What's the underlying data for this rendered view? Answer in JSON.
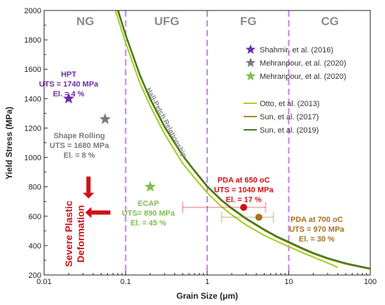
{
  "chart_data": {
    "type": "line",
    "xlabel": "Grain Size (μm)",
    "ylabel": "Yield Stress (MPa)",
    "xscale": "log",
    "xlim": [
      0.01,
      100
    ],
    "ylim": [
      200,
      2000
    ],
    "x_ticks": [
      0.01,
      0.1,
      1,
      10,
      100
    ],
    "x_tick_labels": [
      "0.01",
      "0.1",
      "1",
      "10",
      "100"
    ],
    "y_ticks": [
      200,
      400,
      600,
      800,
      1000,
      1200,
      1400,
      1600,
      1800,
      2000
    ],
    "region_boundaries": [
      0.1,
      1,
      10
    ],
    "regions": [
      {
        "label": "NG",
        "x": 0.032
      },
      {
        "label": "UFG",
        "x": 0.32
      },
      {
        "label": "FG",
        "x": 3.2
      },
      {
        "label": "CG",
        "x": 32
      }
    ],
    "series": [
      {
        "name": "Otto, et al. (2013)",
        "color": "#a3d12d",
        "x": [
          0.075,
          0.1,
          0.15,
          0.2,
          0.3,
          0.5,
          0.7,
          1,
          1.5,
          2,
          3,
          5,
          7,
          10,
          15,
          20,
          30,
          40
        ],
        "y": [
          2000,
          1780,
          1505,
          1350,
          1160,
          960,
          860,
          760,
          665,
          610,
          540,
          470,
          432,
          393,
          350,
          322,
          282,
          252
        ]
      },
      {
        "name": "Sun, et al. (2017)",
        "color": "#a88810",
        "x": [
          0.08,
          0.1,
          0.15,
          0.2,
          0.3,
          0.5,
          0.7,
          1,
          1.5,
          2,
          3,
          5,
          7,
          10,
          15,
          20,
          30,
          50,
          70,
          100
        ],
        "y": [
          2000,
          1830,
          1555,
          1395,
          1205,
          1010,
          905,
          800,
          705,
          650,
          580,
          505,
          460,
          420,
          375,
          345,
          310,
          275,
          258,
          240
        ]
      },
      {
        "name": "Sun, et al. (2019)",
        "color": "#3d7a1c",
        "x": [
          0.081,
          0.1,
          0.15,
          0.2,
          0.3,
          0.5,
          0.7,
          1,
          1.5,
          2,
          3,
          5,
          7,
          10,
          15,
          20,
          30,
          50,
          70,
          100
        ],
        "y": [
          2000,
          1835,
          1560,
          1400,
          1210,
          1015,
          910,
          805,
          710,
          655,
          585,
          510,
          465,
          425,
          380,
          350,
          315,
          280,
          262,
          244
        ]
      }
    ],
    "markers": [
      {
        "name": "Shahmir, et al. (2016)",
        "shape": "star",
        "color": "#6a2fa8",
        "x": 0.02,
        "y": 1400
      },
      {
        "name": "Mehranpour, et al. (2020)",
        "shape": "star",
        "color": "#7a7a7a",
        "x": 0.056,
        "y": 1260
      },
      {
        "name": "Mehranpour, et al. (2020)",
        "shape": "star",
        "color": "#7fbf4d",
        "x": 0.2,
        "y": 800
      },
      {
        "name": "PDA at 650 °C",
        "shape": "circle",
        "color": "#d10f16",
        "x": 2.8,
        "y": 660,
        "xerr": [
          0.5,
          5.2
        ]
      },
      {
        "name": "PDA at 700 °C",
        "shape": "circle",
        "color": "#a8701c",
        "x": 4.3,
        "y": 593,
        "xerr": [
          1.5,
          6.5
        ]
      }
    ],
    "legend": {
      "position": "top-right",
      "items": [
        {
          "label": "Shahmir, et al. (2016)",
          "type": "star",
          "color": "#6a2fa8"
        },
        {
          "label": "Mehranpour, et al. (2020)",
          "type": "star",
          "color": "#7a7a7a"
        },
        {
          "label": "Mehranpour, et al. (2020)",
          "type": "star",
          "color": "#7fbf4d"
        },
        {
          "label": "Otto, et al. (2013)",
          "type": "line",
          "color": "#a3d12d"
        },
        {
          "label": "Sun, et al. (2017)",
          "type": "line",
          "color": "#a88810"
        },
        {
          "label": "Sun, et al. (2019)",
          "type": "line",
          "color": "#3d7a1c"
        }
      ]
    },
    "annotations": [
      {
        "lines": [
          "HPT",
          "UTS = 1740 MPa",
          "El. = 4 %"
        ],
        "color": "#6a2fa8",
        "x": 0.02,
        "y": 1550
      },
      {
        "lines": [
          "Shape Rolling",
          "UTS = 1680 MPa",
          "El. = 8 %"
        ],
        "color": "#7a7a7a",
        "x": 0.027,
        "y": 1130
      },
      {
        "lines": [
          "ECAP",
          "UTS= 890 MPa",
          "El. = 45 %"
        ],
        "color": "#7fbf4d",
        "x": 0.19,
        "y": 670
      },
      {
        "lines": [
          "PDA at 650 oC",
          "UTS = 1040 MPa",
          "El. = 17 %"
        ],
        "color": "#d10f16",
        "x": 2.8,
        "y": 830
      },
      {
        "lines": [
          "PDA at 700 oC",
          "UTS = 970 MPa",
          "El. = 30 %"
        ],
        "color": "#a8701c",
        "x": 22,
        "y": 560
      },
      {
        "lines": [
          "Hall-Petch Relationship"
        ],
        "color": "#888888",
        "rotated": true,
        "x": 0.3,
        "y": 1230
      },
      {
        "lines": [
          "Severe Plastic",
          "Deformation"
        ],
        "color": "#d10f16",
        "rotated": true,
        "x": 0.022,
        "y": 480
      }
    ]
  }
}
